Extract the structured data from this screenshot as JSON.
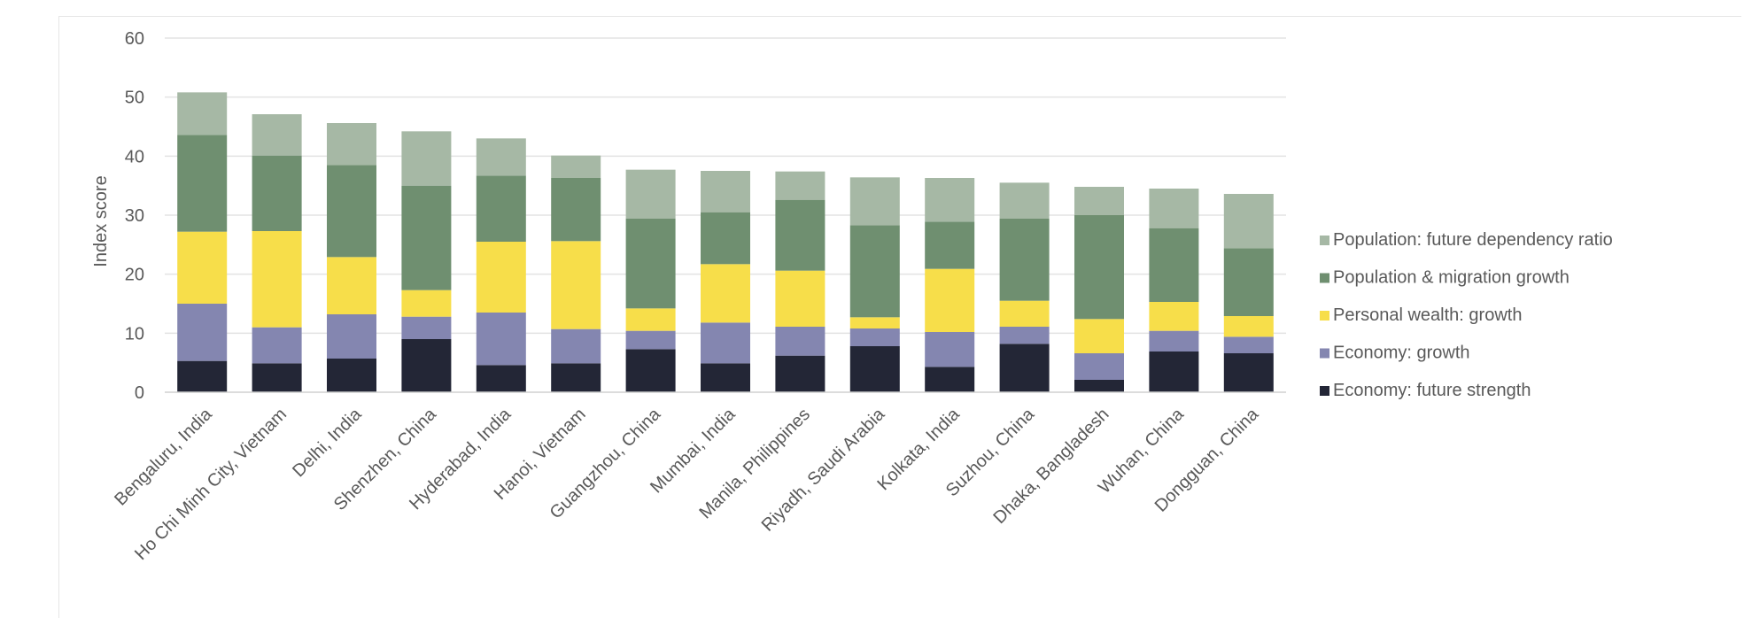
{
  "chart_data": {
    "type": "stacked-bar",
    "title": "",
    "xlabel": "",
    "ylabel": "Index score",
    "ylim": [
      0,
      60
    ],
    "yticks": [
      "0",
      "10",
      "20",
      "30",
      "40",
      "50",
      "60"
    ],
    "grid": true,
    "legend_position": "right",
    "categories": [
      "Bengaluru, India",
      "Ho Chi Minh City, Vietnam",
      "Delhi, India",
      "Shenzhen, China",
      "Hyderabad, India",
      "Hanoi, Vietnam",
      "Guangzhou, China",
      "Mumbai, India",
      "Manila, Philippines",
      "Riyadh, Saudi Arabia",
      "Kolkata, India",
      "Suzhou, China",
      "Dhaka, Bangladesh",
      "Wuhan, China",
      "Dongguan, China"
    ],
    "series": [
      {
        "name": "Economy: future strength",
        "color": "#232636",
        "values": [
          5.3,
          4.9,
          5.7,
          9.0,
          4.6,
          4.9,
          7.3,
          4.9,
          6.2,
          7.8,
          4.3,
          8.2,
          2.1,
          6.9,
          6.6
        ]
      },
      {
        "name": "Economy: growth",
        "color": "#8486b0",
        "values": [
          9.7,
          6.1,
          7.5,
          3.8,
          8.9,
          5.8,
          3.1,
          6.9,
          4.9,
          3.0,
          5.9,
          2.9,
          4.5,
          3.5,
          2.8
        ]
      },
      {
        "name": "Personal wealth: growth",
        "color": "#f7de4a",
        "values": [
          12.2,
          16.3,
          9.7,
          4.5,
          12.0,
          14.9,
          3.8,
          9.9,
          9.5,
          1.9,
          10.7,
          4.4,
          5.8,
          4.9,
          3.5
        ]
      },
      {
        "name": "Population & migration growth",
        "color": "#6f8f70",
        "values": [
          16.4,
          12.8,
          15.6,
          17.7,
          11.2,
          10.7,
          15.2,
          8.8,
          12.0,
          15.6,
          8.0,
          13.9,
          17.6,
          12.5,
          11.5
        ]
      },
      {
        "name": "Population: future dependency ratio",
        "color": "#a6b8a5",
        "values": [
          7.2,
          7.0,
          7.1,
          9.2,
          6.3,
          3.8,
          8.3,
          7.0,
          4.8,
          8.1,
          7.4,
          6.1,
          4.8,
          6.7,
          9.2
        ]
      }
    ]
  }
}
